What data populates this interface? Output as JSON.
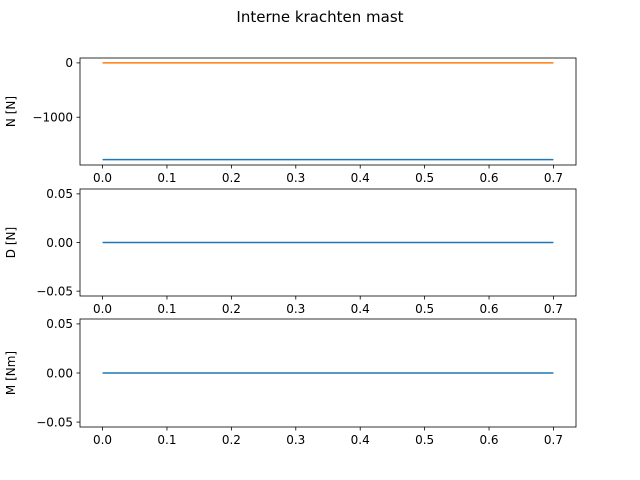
{
  "title": "Interne krachten mast",
  "chart_data": [
    {
      "type": "line",
      "ylabel": "N [N]",
      "xlim": [
        -0.035,
        0.735
      ],
      "ylim": [
        -1880,
        90
      ],
      "xticks": [
        "0.0",
        "0.1",
        "0.2",
        "0.3",
        "0.4",
        "0.5",
        "0.6",
        "0.7"
      ],
      "yticks": [
        {
          "value": 0,
          "label": "0"
        },
        {
          "value": -1000,
          "label": "−1000"
        }
      ],
      "series": [
        {
          "color": "#1f77b4",
          "x": [
            0.0,
            0.7
          ],
          "y": [
            -1780,
            -1780
          ]
        },
        {
          "color": "#ff7f0e",
          "x": [
            0.0,
            0.7
          ],
          "y": [
            0,
            0
          ]
        }
      ]
    },
    {
      "type": "line",
      "ylabel": "D [N]",
      "xlim": [
        -0.035,
        0.735
      ],
      "ylim": [
        -0.055,
        0.055
      ],
      "xticks": [
        "0.0",
        "0.1",
        "0.2",
        "0.3",
        "0.4",
        "0.5",
        "0.6",
        "0.7"
      ],
      "yticks": [
        {
          "value": 0.05,
          "label": "0.05"
        },
        {
          "value": 0.0,
          "label": "0.00"
        },
        {
          "value": -0.05,
          "label": "−0.05"
        }
      ],
      "series": [
        {
          "color": "#1f77b4",
          "x": [
            0.0,
            0.7
          ],
          "y": [
            0,
            0
          ]
        }
      ]
    },
    {
      "type": "line",
      "ylabel": "M [Nm]",
      "xlim": [
        -0.035,
        0.735
      ],
      "ylim": [
        -0.055,
        0.055
      ],
      "xticks": [
        "0.0",
        "0.1",
        "0.2",
        "0.3",
        "0.4",
        "0.5",
        "0.6",
        "0.7"
      ],
      "yticks": [
        {
          "value": 0.05,
          "label": "0.05"
        },
        {
          "value": 0.0,
          "label": "0.00"
        },
        {
          "value": -0.05,
          "label": "−0.05"
        }
      ],
      "series": [
        {
          "color": "#1f77b4",
          "x": [
            0.0,
            0.7
          ],
          "y": [
            0,
            0
          ]
        }
      ]
    }
  ]
}
